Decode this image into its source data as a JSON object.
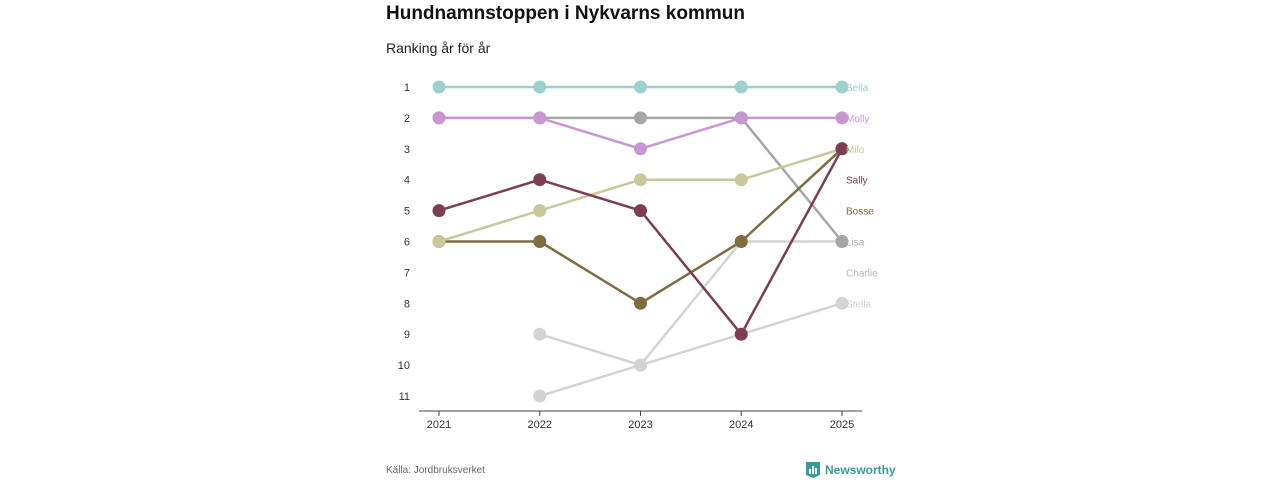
{
  "title": "Hundnamnstoppen i Nykvarns kommun",
  "subtitle": "Ranking år för år",
  "source": "Källa: Jordbruksverket",
  "brand": {
    "name": "Newsworthy",
    "icon": "bar-chart-icon",
    "color": "#3a9a9a"
  },
  "chart_data": {
    "type": "line",
    "title": "Hundnamnstoppen i Nykvarns kommun",
    "subtitle": "Ranking år för år",
    "x": [
      "2021",
      "2022",
      "2023",
      "2024",
      "2025"
    ],
    "y_ticks": [
      1,
      2,
      3,
      4,
      5,
      6,
      7,
      8,
      9,
      10,
      11
    ],
    "ylim": [
      1,
      11
    ],
    "y_reversed": true,
    "grid": false,
    "series": [
      {
        "name": "Charlie",
        "color": "#d3d3d3",
        "values": [
          null,
          9,
          10,
          6,
          6
        ]
      },
      {
        "name": "Stella",
        "color": "#d3d3d3",
        "values": [
          null,
          11,
          10,
          9,
          8
        ]
      },
      {
        "name": "Lisa",
        "color": "#a6a6a6",
        "values": [
          2,
          2,
          2,
          2,
          6
        ]
      },
      {
        "name": "Bosse",
        "color": "#7f6d40",
        "values": [
          6,
          6,
          8,
          6,
          3
        ]
      },
      {
        "name": "Milo",
        "color": "#c9c89a",
        "values": [
          6,
          5,
          4,
          4,
          3
        ]
      },
      {
        "name": "Sally",
        "color": "#7d3e52",
        "values": [
          5,
          4,
          5,
          9,
          3
        ]
      },
      {
        "name": "Molly",
        "color": "#c896d0",
        "values": [
          2,
          2,
          3,
          2,
          2
        ]
      },
      {
        "name": "Bella",
        "color": "#9cd0cf",
        "values": [
          1,
          1,
          1,
          1,
          1
        ]
      }
    ],
    "labels": [
      {
        "text": "Bella",
        "rank": 1,
        "color": "#9cd0cf"
      },
      {
        "text": "Molly",
        "rank": 2,
        "color": "#c896d0"
      },
      {
        "text": "Milo",
        "rank": 3,
        "color": "#c9c89a"
      },
      {
        "text": "Sally",
        "rank": 4,
        "color": "#7d3e52"
      },
      {
        "text": "Bosse",
        "rank": 5,
        "color": "#7f6d40"
      },
      {
        "text": "Lisa",
        "rank": 6,
        "color": "#a6a6a6"
      },
      {
        "text": "Charlie",
        "rank": 7,
        "color": "#b5b5b5"
      },
      {
        "text": "Stella",
        "rank": 8,
        "color": "#d0d0d0"
      }
    ]
  }
}
